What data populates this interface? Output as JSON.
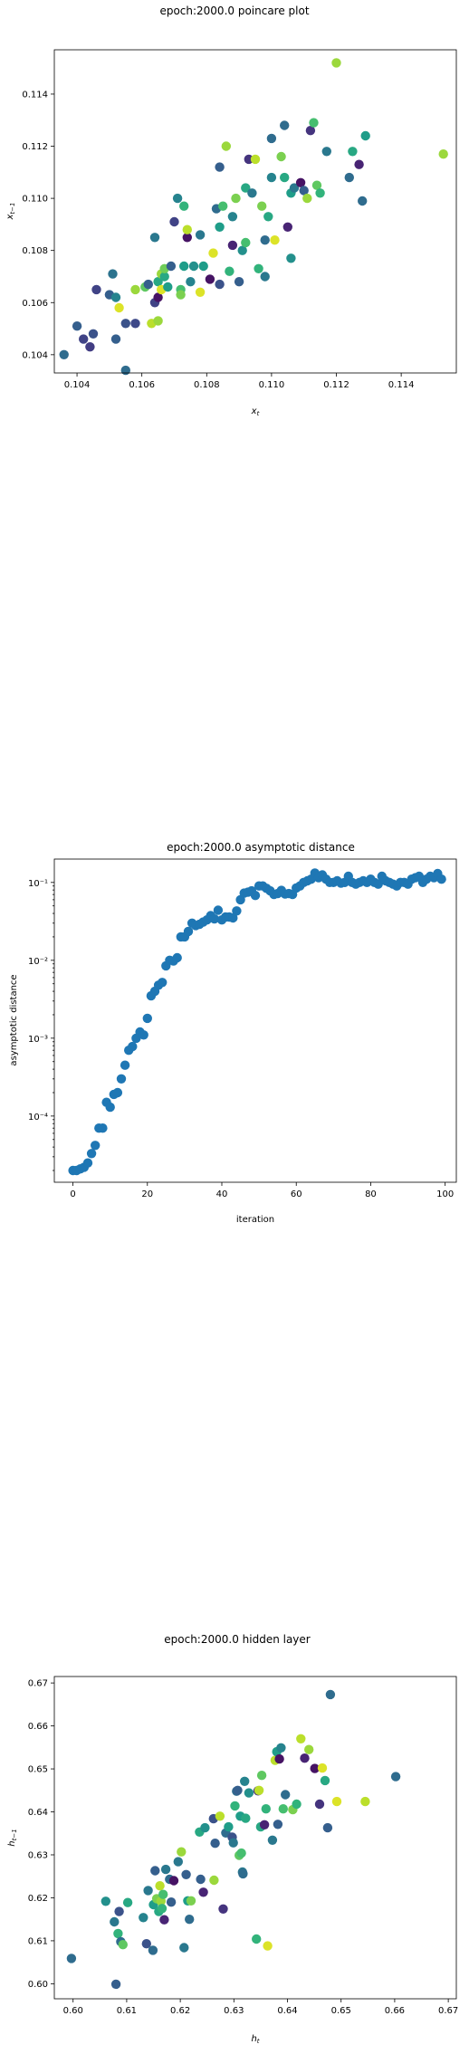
{
  "chart_data": [
    {
      "type": "scatter",
      "title": "epoch:2000.0 poincare plot",
      "xlabel": "x_t",
      "ylabel": "x_{t-1}",
      "xlim": [
        0.1033,
        0.1157
      ],
      "ylim": [
        0.1033,
        0.1157
      ],
      "xticks": [
        "0.104",
        "0.106",
        "0.108",
        "0.110",
        "0.112",
        "0.114"
      ],
      "yticks": [
        "0.104",
        "0.106",
        "0.108",
        "0.110",
        "0.112",
        "0.114"
      ],
      "colormap": "viridis",
      "grid": false,
      "points": [
        {
          "x": 0.1036,
          "y": 0.104,
          "c": 0.35
        },
        {
          "x": 0.104,
          "y": 0.1051,
          "c": 0.3
        },
        {
          "x": 0.1042,
          "y": 0.1046,
          "c": 0.2
        },
        {
          "x": 0.1044,
          "y": 0.1043,
          "c": 0.18
        },
        {
          "x": 0.1045,
          "y": 0.1048,
          "c": 0.25
        },
        {
          "x": 0.1046,
          "y": 0.1065,
          "c": 0.2
        },
        {
          "x": 0.105,
          "y": 0.1063,
          "c": 0.3
        },
        {
          "x": 0.1051,
          "y": 0.1071,
          "c": 0.38
        },
        {
          "x": 0.1052,
          "y": 0.1046,
          "c": 0.3
        },
        {
          "x": 0.1052,
          "y": 0.1062,
          "c": 0.45
        },
        {
          "x": 0.1053,
          "y": 0.1058,
          "c": 0.95
        },
        {
          "x": 0.1055,
          "y": 0.1034,
          "c": 0.35
        },
        {
          "x": 0.1055,
          "y": 0.1052,
          "c": 0.25
        },
        {
          "x": 0.1058,
          "y": 0.1052,
          "c": 0.22
        },
        {
          "x": 0.1058,
          "y": 0.1065,
          "c": 0.85
        },
        {
          "x": 0.1061,
          "y": 0.1066,
          "c": 0.75
        },
        {
          "x": 0.1062,
          "y": 0.1067,
          "c": 0.3
        },
        {
          "x": 0.1063,
          "y": 0.1052,
          "c": 0.9
        },
        {
          "x": 0.1064,
          "y": 0.106,
          "c": 0.2
        },
        {
          "x": 0.1064,
          "y": 0.1085,
          "c": 0.4
        },
        {
          "x": 0.1065,
          "y": 0.1053,
          "c": 0.85
        },
        {
          "x": 0.1065,
          "y": 0.1062,
          "c": 0.05
        },
        {
          "x": 0.1065,
          "y": 0.1068,
          "c": 0.6
        },
        {
          "x": 0.1066,
          "y": 0.1065,
          "c": 0.95
        },
        {
          "x": 0.1066,
          "y": 0.1071,
          "c": 0.85
        },
        {
          "x": 0.1067,
          "y": 0.107,
          "c": 0.6
        },
        {
          "x": 0.1067,
          "y": 0.1073,
          "c": 0.78
        },
        {
          "x": 0.1068,
          "y": 0.1066,
          "c": 0.55
        },
        {
          "x": 0.1069,
          "y": 0.1074,
          "c": 0.3
        },
        {
          "x": 0.107,
          "y": 0.1091,
          "c": 0.2
        },
        {
          "x": 0.1071,
          "y": 0.11,
          "c": 0.45
        },
        {
          "x": 0.1072,
          "y": 0.1065,
          "c": 0.7
        },
        {
          "x": 0.1072,
          "y": 0.1063,
          "c": 0.8
        },
        {
          "x": 0.1073,
          "y": 0.1097,
          "c": 0.65
        },
        {
          "x": 0.1073,
          "y": 0.1074,
          "c": 0.55
        },
        {
          "x": 0.1074,
          "y": 0.1085,
          "c": 0.05
        },
        {
          "x": 0.1074,
          "y": 0.1088,
          "c": 0.9
        },
        {
          "x": 0.1075,
          "y": 0.1068,
          "c": 0.45
        },
        {
          "x": 0.1076,
          "y": 0.1074,
          "c": 0.5
        },
        {
          "x": 0.1078,
          "y": 0.1064,
          "c": 0.95
        },
        {
          "x": 0.1078,
          "y": 0.1086,
          "c": 0.4
        },
        {
          "x": 0.1079,
          "y": 0.1074,
          "c": 0.55
        },
        {
          "x": 0.1081,
          "y": 0.1069,
          "c": 0.05
        },
        {
          "x": 0.1082,
          "y": 0.1079,
          "c": 0.95
        },
        {
          "x": 0.1083,
          "y": 0.1096,
          "c": 0.35
        },
        {
          "x": 0.1084,
          "y": 0.1112,
          "c": 0.3
        },
        {
          "x": 0.1084,
          "y": 0.1067,
          "c": 0.25
        },
        {
          "x": 0.1084,
          "y": 0.1089,
          "c": 0.55
        },
        {
          "x": 0.1085,
          "y": 0.1097,
          "c": 0.7
        },
        {
          "x": 0.1086,
          "y": 0.112,
          "c": 0.85
        },
        {
          "x": 0.1087,
          "y": 0.1072,
          "c": 0.65
        },
        {
          "x": 0.1088,
          "y": 0.1082,
          "c": 0.1
        },
        {
          "x": 0.1088,
          "y": 0.1093,
          "c": 0.45
        },
        {
          "x": 0.1089,
          "y": 0.11,
          "c": 0.8
        },
        {
          "x": 0.109,
          "y": 0.1068,
          "c": 0.3
        },
        {
          "x": 0.1091,
          "y": 0.108,
          "c": 0.5
        },
        {
          "x": 0.1092,
          "y": 0.1083,
          "c": 0.7
        },
        {
          "x": 0.1092,
          "y": 0.1104,
          "c": 0.6
        },
        {
          "x": 0.1093,
          "y": 0.1115,
          "c": 0.15
        },
        {
          "x": 0.1094,
          "y": 0.1102,
          "c": 0.4
        },
        {
          "x": 0.1095,
          "y": 0.1115,
          "c": 0.9
        },
        {
          "x": 0.1096,
          "y": 0.1073,
          "c": 0.65
        },
        {
          "x": 0.1097,
          "y": 0.1097,
          "c": 0.8
        },
        {
          "x": 0.1098,
          "y": 0.1084,
          "c": 0.35
        },
        {
          "x": 0.1098,
          "y": 0.107,
          "c": 0.4
        },
        {
          "x": 0.1099,
          "y": 0.1093,
          "c": 0.6
        },
        {
          "x": 0.11,
          "y": 0.1108,
          "c": 0.45
        },
        {
          "x": 0.11,
          "y": 0.1123,
          "c": 0.35
        },
        {
          "x": 0.1101,
          "y": 0.1084,
          "c": 0.95
        },
        {
          "x": 0.1103,
          "y": 0.1116,
          "c": 0.8
        },
        {
          "x": 0.1104,
          "y": 0.1128,
          "c": 0.35
        },
        {
          "x": 0.1104,
          "y": 0.1108,
          "c": 0.6
        },
        {
          "x": 0.1105,
          "y": 0.1089,
          "c": 0.1
        },
        {
          "x": 0.1106,
          "y": 0.1102,
          "c": 0.55
        },
        {
          "x": 0.1106,
          "y": 0.1077,
          "c": 0.5
        },
        {
          "x": 0.1107,
          "y": 0.1104,
          "c": 0.4
        },
        {
          "x": 0.1109,
          "y": 0.1106,
          "c": 0.05
        },
        {
          "x": 0.111,
          "y": 0.1103,
          "c": 0.3
        },
        {
          "x": 0.1111,
          "y": 0.11,
          "c": 0.85
        },
        {
          "x": 0.1112,
          "y": 0.1126,
          "c": 0.15
        },
        {
          "x": 0.1113,
          "y": 0.1129,
          "c": 0.7
        },
        {
          "x": 0.1114,
          "y": 0.1105,
          "c": 0.75
        },
        {
          "x": 0.1115,
          "y": 0.1102,
          "c": 0.65
        },
        {
          "x": 0.1117,
          "y": 0.1118,
          "c": 0.4
        },
        {
          "x": 0.112,
          "y": 0.1152,
          "c": 0.85
        },
        {
          "x": 0.1124,
          "y": 0.1108,
          "c": 0.35
        },
        {
          "x": 0.1125,
          "y": 0.1118,
          "c": 0.6
        },
        {
          "x": 0.1127,
          "y": 0.1113,
          "c": 0.1
        },
        {
          "x": 0.1128,
          "y": 0.1099,
          "c": 0.35
        },
        {
          "x": 0.1129,
          "y": 0.1124,
          "c": 0.55
        },
        {
          "x": 0.1153,
          "y": 0.1117,
          "c": 0.85
        }
      ]
    },
    {
      "type": "scatter",
      "title": "epoch:2000.0 asymptotic distance",
      "xlabel": "iteration",
      "ylabel": "asymptotic distance",
      "xlim": [
        -5,
        103
      ],
      "ylim_log10": [
        -4.85,
        -0.7
      ],
      "yscale": "log",
      "xticks": [
        "0",
        "20",
        "40",
        "60",
        "80",
        "100"
      ],
      "yticks": [
        "10⁻⁴",
        "10⁻³",
        "10⁻²",
        "10⁻¹"
      ],
      "color": "#1f77b4",
      "grid": false,
      "x": [
        0,
        1,
        2,
        3,
        4,
        5,
        6,
        7,
        8,
        9,
        10,
        11,
        12,
        13,
        14,
        15,
        16,
        17,
        18,
        19,
        20,
        21,
        22,
        23,
        24,
        25,
        26,
        27,
        28,
        29,
        30,
        31,
        32,
        33,
        34,
        35,
        36,
        37,
        38,
        39,
        40,
        41,
        42,
        43,
        44,
        45,
        46,
        47,
        48,
        49,
        50,
        51,
        52,
        53,
        54,
        55,
        56,
        57,
        58,
        59,
        60,
        61,
        62,
        63,
        64,
        65,
        66,
        67,
        68,
        69,
        70,
        71,
        72,
        73,
        74,
        75,
        76,
        77,
        78,
        79,
        80,
        81,
        82,
        83,
        84,
        85,
        86,
        87,
        88,
        89,
        90,
        91,
        92,
        93,
        94,
        95,
        96,
        97,
        98,
        99
      ],
      "y": [
        2e-05,
        2e-05,
        2.1e-05,
        2.2e-05,
        2.5e-05,
        3.3e-05,
        4.2e-05,
        7e-05,
        7e-05,
        0.00015,
        0.00013,
        0.00019,
        0.0002,
        0.0003,
        0.00045,
        0.0007,
        0.00078,
        0.001,
        0.0012,
        0.0011,
        0.0018,
        0.0035,
        0.004,
        0.0048,
        0.0052,
        0.0085,
        0.01,
        0.0098,
        0.0108,
        0.02,
        0.02,
        0.0235,
        0.03,
        0.028,
        0.029,
        0.031,
        0.033,
        0.0375,
        0.034,
        0.044,
        0.033,
        0.036,
        0.036,
        0.035,
        0.043,
        0.06,
        0.073,
        0.075,
        0.078,
        0.068,
        0.09,
        0.09,
        0.084,
        0.078,
        0.07,
        0.072,
        0.079,
        0.071,
        0.072,
        0.07,
        0.085,
        0.09,
        0.1,
        0.105,
        0.11,
        0.132,
        0.115,
        0.125,
        0.11,
        0.1,
        0.1,
        0.105,
        0.098,
        0.1,
        0.12,
        0.1,
        0.095,
        0.1,
        0.105,
        0.1,
        0.11,
        0.1,
        0.095,
        0.12,
        0.105,
        0.1,
        0.095,
        0.09,
        0.1,
        0.1,
        0.095,
        0.11,
        0.115,
        0.12,
        0.1,
        0.11,
        0.12,
        0.115,
        0.13,
        0.11
      ]
    },
    {
      "type": "scatter",
      "title": "epoch:2000.0 hidden layer",
      "xlabel": "h_t",
      "ylabel": "h_{t-1}",
      "xlim": [
        0.5965,
        0.6715
      ],
      "ylim": [
        0.5965,
        0.6715
      ],
      "xticks": [
        "0.60",
        "0.61",
        "0.62",
        "0.63",
        "0.64",
        "0.65",
        "0.66",
        "0.67"
      ],
      "yticks": [
        "0.60",
        "0.61",
        "0.62",
        "0.63",
        "0.64",
        "0.65",
        "0.66",
        "0.67"
      ],
      "colormap": "viridis",
      "grid": false,
      "points": [
        {
          "x": 0.5997,
          "y": 0.6059,
          "c": 0.35
        },
        {
          "x": 0.6061,
          "y": 0.6192,
          "c": 0.5
        },
        {
          "x": 0.6077,
          "y": 0.6144,
          "c": 0.4
        },
        {
          "x": 0.608,
          "y": 0.5999,
          "c": 0.3
        },
        {
          "x": 0.6084,
          "y": 0.6117,
          "c": 0.65
        },
        {
          "x": 0.6086,
          "y": 0.6168,
          "c": 0.25
        },
        {
          "x": 0.6089,
          "y": 0.6098,
          "c": 0.35
        },
        {
          "x": 0.6093,
          "y": 0.6091,
          "c": 0.75
        },
        {
          "x": 0.6102,
          "y": 0.6189,
          "c": 0.6
        },
        {
          "x": 0.6131,
          "y": 0.6154,
          "c": 0.45
        },
        {
          "x": 0.6137,
          "y": 0.6093,
          "c": 0.25
        },
        {
          "x": 0.614,
          "y": 0.6217,
          "c": 0.4
        },
        {
          "x": 0.6149,
          "y": 0.6078,
          "c": 0.35
        },
        {
          "x": 0.615,
          "y": 0.6184,
          "c": 0.55
        },
        {
          "x": 0.6153,
          "y": 0.6263,
          "c": 0.3
        },
        {
          "x": 0.6156,
          "y": 0.6198,
          "c": 0.8
        },
        {
          "x": 0.616,
          "y": 0.6168,
          "c": 0.6
        },
        {
          "x": 0.6162,
          "y": 0.6228,
          "c": 0.9
        },
        {
          "x": 0.6164,
          "y": 0.6192,
          "c": 0.85
        },
        {
          "x": 0.6166,
          "y": 0.6175,
          "c": 0.65
        },
        {
          "x": 0.6168,
          "y": 0.6208,
          "c": 0.7
        },
        {
          "x": 0.617,
          "y": 0.6149,
          "c": 0.1
        },
        {
          "x": 0.6173,
          "y": 0.6266,
          "c": 0.4
        },
        {
          "x": 0.618,
          "y": 0.6243,
          "c": 0.35
        },
        {
          "x": 0.6183,
          "y": 0.619,
          "c": 0.3
        },
        {
          "x": 0.6188,
          "y": 0.624,
          "c": 0.05
        },
        {
          "x": 0.6196,
          "y": 0.6284,
          "c": 0.4
        },
        {
          "x": 0.6202,
          "y": 0.6307,
          "c": 0.85
        },
        {
          "x": 0.6207,
          "y": 0.6084,
          "c": 0.4
        },
        {
          "x": 0.6211,
          "y": 0.6254,
          "c": 0.3
        },
        {
          "x": 0.6214,
          "y": 0.6193,
          "c": 0.55
        },
        {
          "x": 0.6217,
          "y": 0.615,
          "c": 0.35
        },
        {
          "x": 0.622,
          "y": 0.6193,
          "c": 0.8
        },
        {
          "x": 0.6236,
          "y": 0.6353,
          "c": 0.6
        },
        {
          "x": 0.6238,
          "y": 0.6243,
          "c": 0.3
        },
        {
          "x": 0.6243,
          "y": 0.6213,
          "c": 0.1
        },
        {
          "x": 0.6246,
          "y": 0.6363,
          "c": 0.5
        },
        {
          "x": 0.6262,
          "y": 0.6384,
          "c": 0.25
        },
        {
          "x": 0.6263,
          "y": 0.6241,
          "c": 0.85
        },
        {
          "x": 0.6265,
          "y": 0.6327,
          "c": 0.3
        },
        {
          "x": 0.6274,
          "y": 0.639,
          "c": 0.9
        },
        {
          "x": 0.628,
          "y": 0.6174,
          "c": 0.15
        },
        {
          "x": 0.6285,
          "y": 0.6351,
          "c": 0.35
        },
        {
          "x": 0.629,
          "y": 0.6365,
          "c": 0.55
        },
        {
          "x": 0.6297,
          "y": 0.6341,
          "c": 0.25
        },
        {
          "x": 0.6299,
          "y": 0.6328,
          "c": 0.4
        },
        {
          "x": 0.6302,
          "y": 0.6414,
          "c": 0.65
        },
        {
          "x": 0.6305,
          "y": 0.6448,
          "c": 0.35
        },
        {
          "x": 0.6307,
          "y": 0.645,
          "c": 0.3
        },
        {
          "x": 0.631,
          "y": 0.6299,
          "c": 0.75
        },
        {
          "x": 0.6312,
          "y": 0.639,
          "c": 0.55
        },
        {
          "x": 0.6314,
          "y": 0.6304,
          "c": 0.7
        },
        {
          "x": 0.6316,
          "y": 0.626,
          "c": 0.4
        },
        {
          "x": 0.6317,
          "y": 0.6256,
          "c": 0.35
        },
        {
          "x": 0.632,
          "y": 0.6471,
          "c": 0.45
        },
        {
          "x": 0.6322,
          "y": 0.6385,
          "c": 0.6
        },
        {
          "x": 0.6328,
          "y": 0.6444,
          "c": 0.5
        },
        {
          "x": 0.6342,
          "y": 0.6104,
          "c": 0.65
        },
        {
          "x": 0.6345,
          "y": 0.6449,
          "c": 0.15
        },
        {
          "x": 0.6347,
          "y": 0.645,
          "c": 0.9
        },
        {
          "x": 0.635,
          "y": 0.6365,
          "c": 0.6
        },
        {
          "x": 0.6352,
          "y": 0.6485,
          "c": 0.75
        },
        {
          "x": 0.6357,
          "y": 0.637,
          "c": 0.1
        },
        {
          "x": 0.636,
          "y": 0.6407,
          "c": 0.65
        },
        {
          "x": 0.6363,
          "y": 0.6088,
          "c": 0.95
        },
        {
          "x": 0.6372,
          "y": 0.6334,
          "c": 0.4
        },
        {
          "x": 0.6377,
          "y": 0.652,
          "c": 0.9
        },
        {
          "x": 0.638,
          "y": 0.654,
          "c": 0.55
        },
        {
          "x": 0.6382,
          "y": 0.6371,
          "c": 0.3
        },
        {
          "x": 0.6385,
          "y": 0.6523,
          "c": 0.05
        },
        {
          "x": 0.6388,
          "y": 0.6549,
          "c": 0.45
        },
        {
          "x": 0.6392,
          "y": 0.6407,
          "c": 0.7
        },
        {
          "x": 0.6396,
          "y": 0.644,
          "c": 0.35
        },
        {
          "x": 0.641,
          "y": 0.6405,
          "c": 0.8
        },
        {
          "x": 0.6417,
          "y": 0.6418,
          "c": 0.65
        },
        {
          "x": 0.6425,
          "y": 0.657,
          "c": 0.9
        },
        {
          "x": 0.6432,
          "y": 0.6525,
          "c": 0.1
        },
        {
          "x": 0.644,
          "y": 0.6545,
          "c": 0.85
        },
        {
          "x": 0.6451,
          "y": 0.6501,
          "c": 0.05
        },
        {
          "x": 0.646,
          "y": 0.6418,
          "c": 0.15
        },
        {
          "x": 0.6465,
          "y": 0.6502,
          "c": 0.95
        },
        {
          "x": 0.647,
          "y": 0.6473,
          "c": 0.6
        },
        {
          "x": 0.6475,
          "y": 0.6363,
          "c": 0.3
        },
        {
          "x": 0.648,
          "y": 0.6673,
          "c": 0.35
        },
        {
          "x": 0.6492,
          "y": 0.6424,
          "c": 0.95
        },
        {
          "x": 0.6545,
          "y": 0.6424,
          "c": 0.9
        },
        {
          "x": 0.6602,
          "y": 0.6482,
          "c": 0.35
        }
      ]
    }
  ]
}
